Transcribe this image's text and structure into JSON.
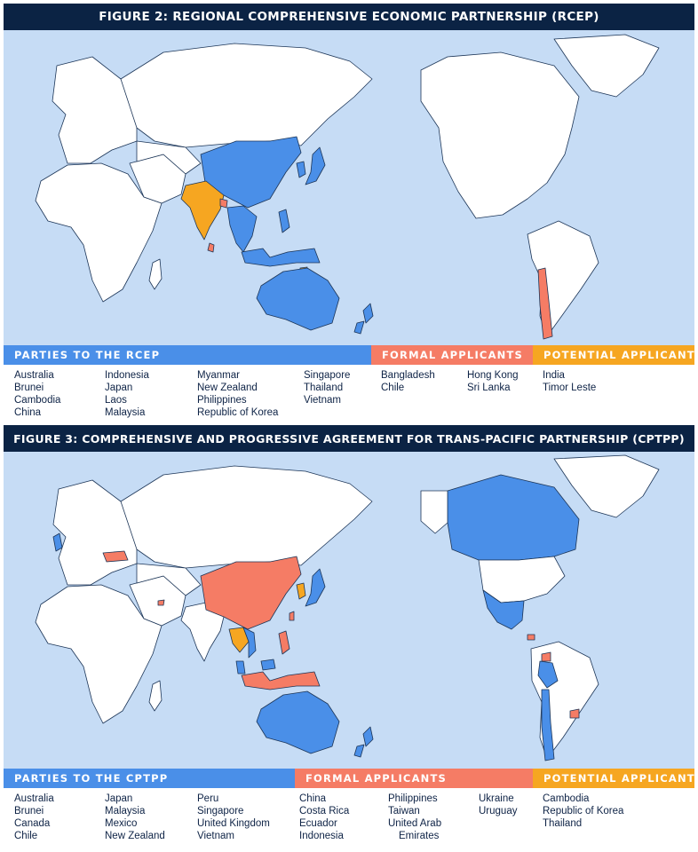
{
  "colors": {
    "ocean": "#c6dcf5",
    "land": "#ffffff",
    "party": "#4a8fe8",
    "formal": "#f57c65",
    "potential": "#f6a621",
    "title_bg": "#0b2344"
  },
  "figure2": {
    "title": "FIGURE 2:  REGIONAL COMPREHENSIVE ECONOMIC PARTNERSHIP (RCEP)",
    "parties_header": "PARTIES TO THE RCEP",
    "formal_header": "FORMAL APPLICANTS",
    "potential_header": "POTENTIAL APPLICANTS",
    "parties_cols": [
      [
        "Australia",
        "Brunei",
        "Cambodia",
        "China"
      ],
      [
        "Indonesia",
        "Japan",
        "Laos",
        "Malaysia"
      ],
      [
        "Myanmar",
        "New Zealand",
        "Philippines",
        "Republic of Korea"
      ],
      [
        "Singapore",
        "Thailand",
        "Vietnam"
      ]
    ],
    "formal_cols": [
      [
        "Bangladesh",
        "Chile"
      ],
      [
        "Hong Kong",
        "Sri Lanka"
      ]
    ],
    "potential_cols": [
      [
        "India",
        "Timor Leste"
      ]
    ]
  },
  "figure3": {
    "title": "FIGURE 3:  COMPREHENSIVE AND PROGRESSIVE AGREEMENT FOR TRANS-PACIFIC PARTNERSHIP (CPTPP)",
    "parties_header": "PARTIES TO THE CPTPP",
    "formal_header": "FORMAL APPLICANTS",
    "potential_header": "POTENTIAL APPLICANTS",
    "parties_cols": [
      [
        "Australia",
        "Brunei",
        "Canada",
        "Chile"
      ],
      [
        "Japan",
        "Malaysia",
        "Mexico",
        "New Zealand"
      ],
      [
        "Peru",
        "Singapore",
        "United Kingdom",
        "Vietnam"
      ]
    ],
    "formal_cols": [
      [
        "China",
        "Costa Rica",
        "Ecuador",
        "Indonesia"
      ],
      [
        "Philippines",
        "Taiwan",
        "United Arab",
        "Emirates"
      ],
      [
        "Ukraine",
        "Uruguay"
      ]
    ],
    "potential_cols": [
      [
        "Cambodia",
        "Republic of Korea",
        "Thailand"
      ]
    ]
  }
}
